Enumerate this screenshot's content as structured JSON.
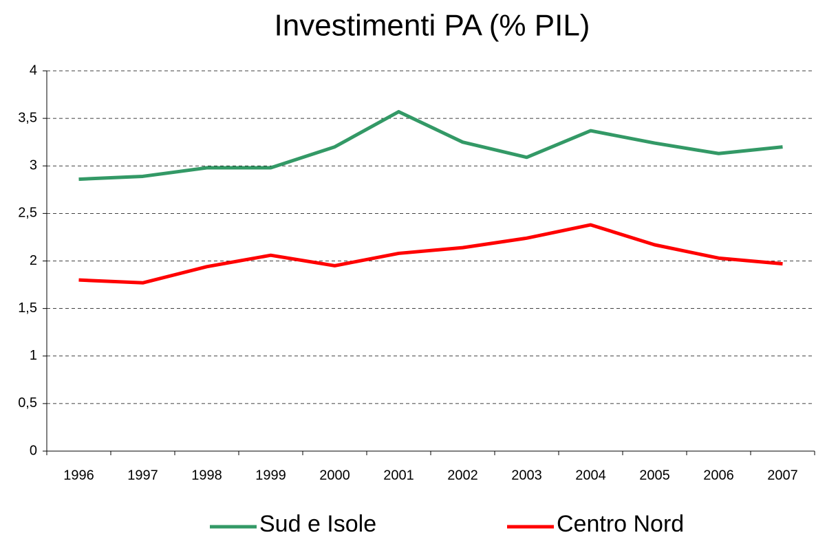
{
  "chart_data": {
    "type": "line",
    "title": "Investimenti PA (% PIL)",
    "categories": [
      "1996",
      "1997",
      "1998",
      "1999",
      "2000",
      "2001",
      "2002",
      "2003",
      "2004",
      "2005",
      "2006",
      "2007"
    ],
    "series": [
      {
        "name": "Sud e Isole",
        "color": "#339966",
        "values": [
          2.86,
          2.89,
          2.98,
          2.98,
          3.2,
          3.57,
          3.25,
          3.09,
          3.37,
          3.24,
          3.13,
          3.2
        ]
      },
      {
        "name": "Centro Nord",
        "color": "#ff0000",
        "values": [
          1.8,
          1.77,
          1.94,
          2.06,
          1.95,
          2.08,
          2.14,
          2.24,
          2.38,
          2.17,
          2.03,
          1.97
        ]
      }
    ],
    "ylim": [
      0,
      4
    ],
    "yticks": [
      0,
      {
        "value": 0.5,
        "label": "0,5"
      },
      1,
      {
        "value": 1.5,
        "label": "1,5"
      },
      2,
      {
        "value": 2.5,
        "label": "2,5"
      },
      3,
      {
        "value": 3.5,
        "label": "3,5"
      },
      4
    ],
    "grid": true,
    "legend": "bottom"
  }
}
